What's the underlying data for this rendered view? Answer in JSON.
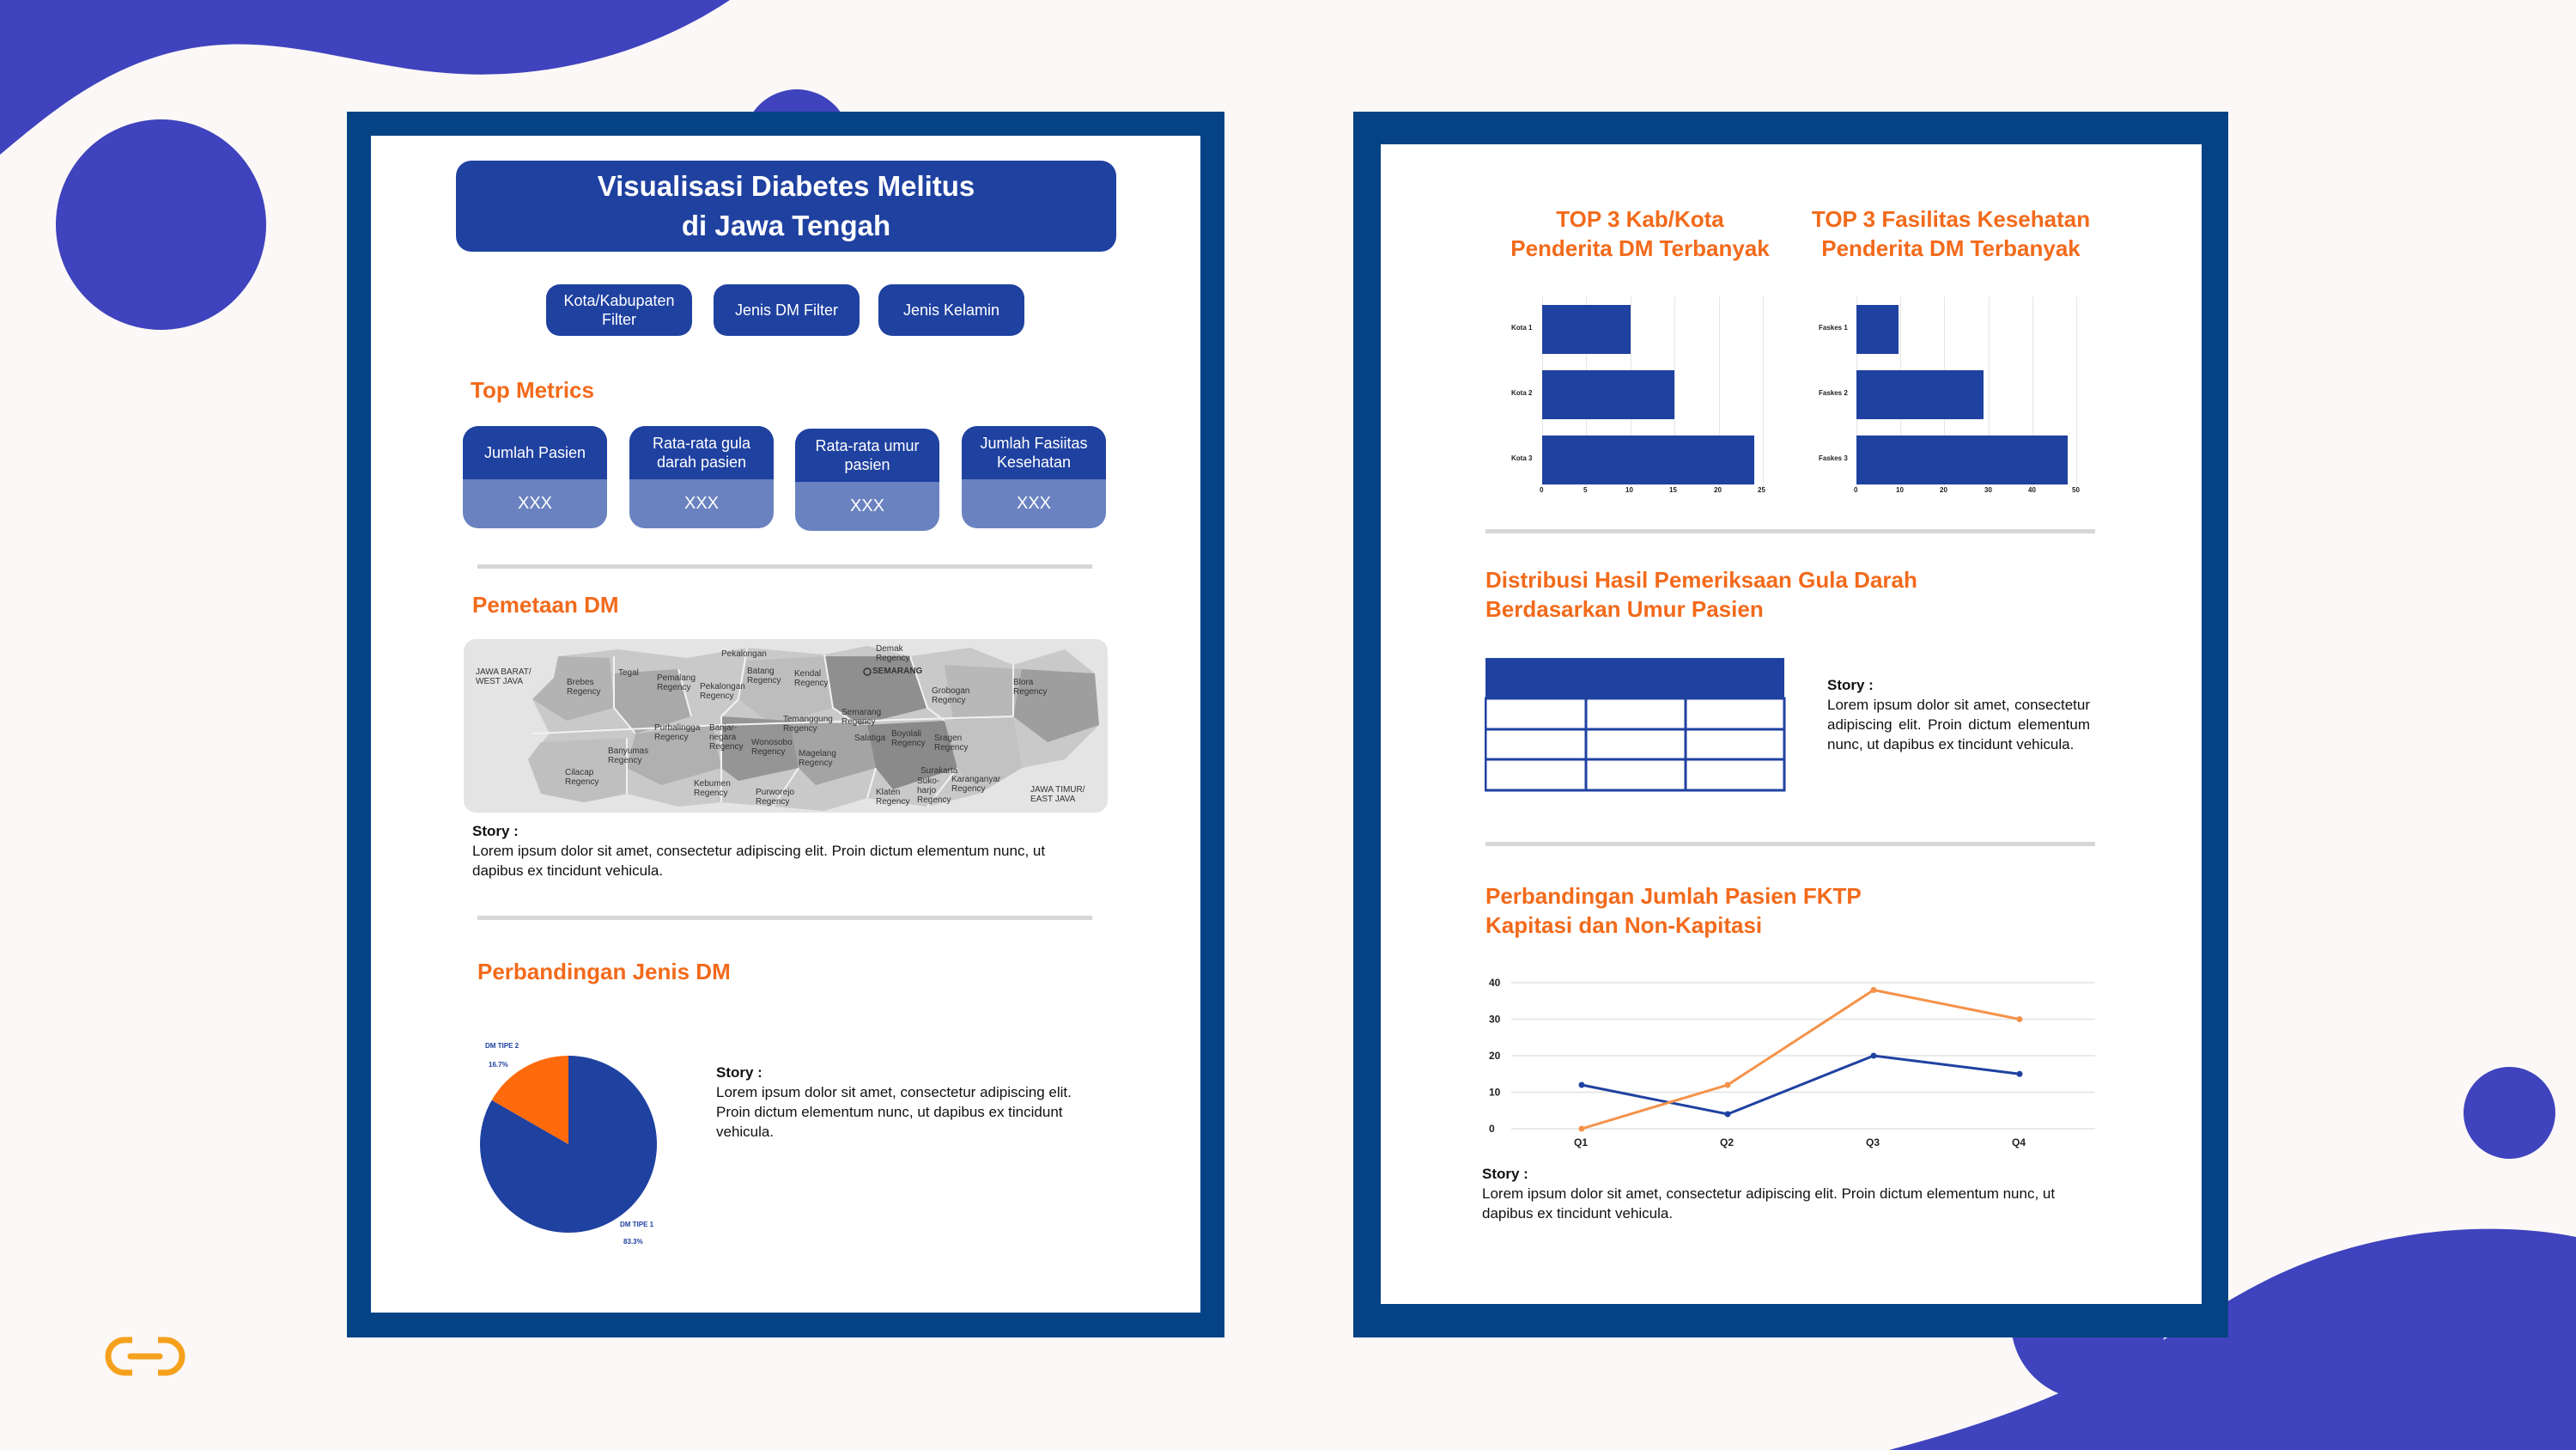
{
  "page": {
    "title_line1": "Visualisasi Diabetes Melitus",
    "title_line2": "di Jawa Tengah"
  },
  "filters": [
    {
      "label": "Kota/Kabupaten Filter"
    },
    {
      "label": "Jenis DM Filter"
    },
    {
      "label": "Jenis Kelamin"
    }
  ],
  "metrics": {
    "title": "Top Metrics",
    "items": [
      {
        "label": "Jumlah Pasien",
        "value": "XXX"
      },
      {
        "label": "Rata-rata gula darah pasien",
        "value": "XXX"
      },
      {
        "label": "Rata-rata umur pasien",
        "value": "XXX"
      },
      {
        "label": "Jumlah Fasiitas Kesehatan",
        "value": "XXX"
      }
    ]
  },
  "map_section": {
    "title": "Pemetaan DM",
    "labels": {
      "west": "JAWA BARAT/ WEST JAVA",
      "east": "JAWA TIMUR/ EAST JAVA",
      "semarang": "SEMARANG",
      "tegal": "Tegal",
      "brebes": "Brebes Regency",
      "pemalang": "Pemalang Regency",
      "pekalongan": "Pekalongan Regency",
      "batang": "Batang Regency",
      "kendal": "Kendal Regency",
      "demak": "Demak Regency",
      "grobogan": "Grobogan Regency",
      "blora": "Blora Regency",
      "banyumas": "Banyumas Regency",
      "cilacap": "Cilacap Regency",
      "purbalingga": "Purbalingga Regency",
      "banjarnegara": "Banjar-negara Regency",
      "wonosobo": "Wonosobo Regency",
      "temanggung": "Temanggung Regency",
      "semarang_reg": "Semarang Regency",
      "boyolali": "Boyolali Regency",
      "sragen": "Sragen Regency",
      "magelang": "Magelang Regency",
      "kebumen": "Kebumen Regency",
      "purworejo": "Purworejo Regency",
      "klaten": "Klaten Regency",
      "sukoharjo": "Suko-harjo Regency",
      "surakarta": "Surakarta",
      "karanganyar": "Karanganyar Regency",
      "salatiga": "Salatiga",
      "pekalongan_city": "Pekalongan"
    },
    "story_label": "Story :",
    "story_text": "Lorem ipsum dolor sit amet, consectetur adipiscing elit. Proin dictum elementum nunc, ut dapibus ex tincidunt vehicula."
  },
  "pie_section": {
    "title": "Perbandingan Jenis DM",
    "story_label": "Story :",
    "story_text": "Lorem ipsum dolor sit amet, consectetur adipiscing elit. Proin dictum elementum nunc, ut dapibus ex tincidunt vehicula."
  },
  "bars_left": {
    "title_line1": "TOP 3 Kab/Kota",
    "title_line2": "Penderita DM Terbanyak"
  },
  "bars_right": {
    "title_line1": "TOP 3 Fasilitas Kesehatan",
    "title_line2": "Penderita DM Terbanyak"
  },
  "table_section": {
    "title_line1": "Distribusi Hasil Pemeriksaan Gula Darah",
    "title_line2": "Berdasarkan Umur Pasien",
    "story_label": "Story :",
    "story_text": "Lorem ipsum dolor sit amet, consectetur adipiscing elit. Proin dictum elementum nunc, ut dapibus ex tincidunt vehicula."
  },
  "line_section": {
    "title_line1": "Perbandingan Jumlah Pasien FKTP",
    "title_line2": "Kapitasi dan Non-Kapitasi",
    "story_label": "Story :",
    "story_text": "Lorem ipsum dolor sit amet, consectetur adipiscing elit. Proin dictum elementum nunc, ut dapibus ex tincidunt vehicula."
  },
  "colors": {
    "brand_blue": "#1f41a0",
    "frame_blue": "#064385",
    "accent_orange": "#f26a1b",
    "deco_purple": "#3f43bd"
  },
  "chart_data": [
    {
      "type": "pie",
      "title": "Perbandingan Jenis DM",
      "categories": [
        "DM TIPE 1",
        "DM TIPE 2"
      ],
      "values": [
        83.3,
        16.7
      ],
      "value_labels": [
        "83.3%",
        "16.7%"
      ],
      "colors": [
        "#1f41a0",
        "#ff6a0c"
      ]
    },
    {
      "type": "bar",
      "orientation": "horizontal",
      "title": "TOP 3 Kab/Kota Penderita DM Terbanyak",
      "categories": [
        "Kota 1",
        "Kota 2",
        "Kota 3"
      ],
      "values": [
        10,
        15,
        24
      ],
      "xlim": [
        0,
        25
      ],
      "xticks": [
        "0",
        "5",
        "10",
        "15",
        "20",
        "25"
      ]
    },
    {
      "type": "bar",
      "orientation": "horizontal",
      "title": "TOP 3 Fasilitas Kesehatan Penderita DM Terbanyak",
      "categories": [
        "Faskes 1",
        "Faskes 2",
        "Faskes 3"
      ],
      "values": [
        10,
        30,
        50
      ],
      "xlim": [
        0,
        52
      ],
      "xticks": [
        "0",
        "10",
        "20",
        "30",
        "40",
        "50"
      ]
    },
    {
      "type": "table",
      "title": "Distribusi Hasil Pemeriksaan Gula Darah Berdasarkan Umur Pasien",
      "columns": 3,
      "rows": 3
    },
    {
      "type": "line",
      "title": "Perbandingan Jumlah Pasien FKTP Kapitasi dan Non-Kapitasi",
      "categories": [
        "Q1",
        "Q2",
        "Q3",
        "Q4"
      ],
      "series": [
        {
          "name": "Kapitasi",
          "values": [
            12,
            4,
            20,
            15
          ],
          "color": "#1f41a0"
        },
        {
          "name": "Non-Kapitasi",
          "values": [
            0,
            12,
            38,
            30
          ],
          "color": "#f5924a"
        }
      ],
      "ylim": [
        0,
        40
      ],
      "yticks": [
        "0",
        "10",
        "20",
        "30",
        "40"
      ]
    }
  ]
}
